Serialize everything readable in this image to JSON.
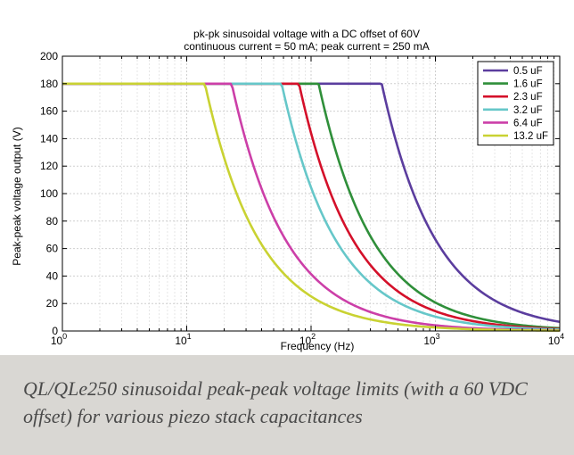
{
  "caption": "QL/QLe250 sinusoidal peak-peak voltage limits (with a 60 VDC offset) for various piezo stack capacitances",
  "chart_data": {
    "type": "line",
    "title": "pk-pk sinusoidal voltage with a DC offset of 60V",
    "subtitle": "continuous current = 50 mA; peak current = 250 mA",
    "xlabel": "Frequency (Hz)",
    "ylabel": "Peak-peak voltage output (V)",
    "xscale": "log",
    "xlim": [
      1,
      10000
    ],
    "ylim": [
      0,
      200
    ],
    "grid": true,
    "legend_position": "top-right",
    "x_ticks": [
      {
        "value": 1,
        "base": "10",
        "exp": "0"
      },
      {
        "value": 10,
        "base": "10",
        "exp": "1"
      },
      {
        "value": 100,
        "base": "10",
        "exp": "2"
      },
      {
        "value": 1000,
        "base": "10",
        "exp": "3"
      },
      {
        "value": 10000,
        "base": "10",
        "exp": "4"
      }
    ],
    "y_ticks": [
      "0",
      "20",
      "40",
      "60",
      "80",
      "100",
      "120",
      "140",
      "160",
      "180",
      "200"
    ],
    "model": {
      "description": "V = 180 V up to the knee frequency, then falls as 1/f",
      "v_max": 180
    },
    "series": [
      {
        "name": "0.5 uF",
        "color": "#5b3d9e",
        "knee_hz": 370,
        "v_max": 180
      },
      {
        "name": "1.6 uF",
        "color": "#2f8f3a",
        "knee_hz": 115,
        "v_max": 180
      },
      {
        "name": "2.3 uF",
        "color": "#d4102a",
        "knee_hz": 80,
        "v_max": 180
      },
      {
        "name": "3.2 uF",
        "color": "#66c7c9",
        "knee_hz": 58,
        "v_max": 180
      },
      {
        "name": "6.4 uF",
        "color": "#cc3fa8",
        "knee_hz": 23,
        "v_max": 180
      },
      {
        "name": "13.2 uF",
        "color": "#c9d232",
        "knee_hz": 14,
        "v_max": 180
      }
    ]
  }
}
